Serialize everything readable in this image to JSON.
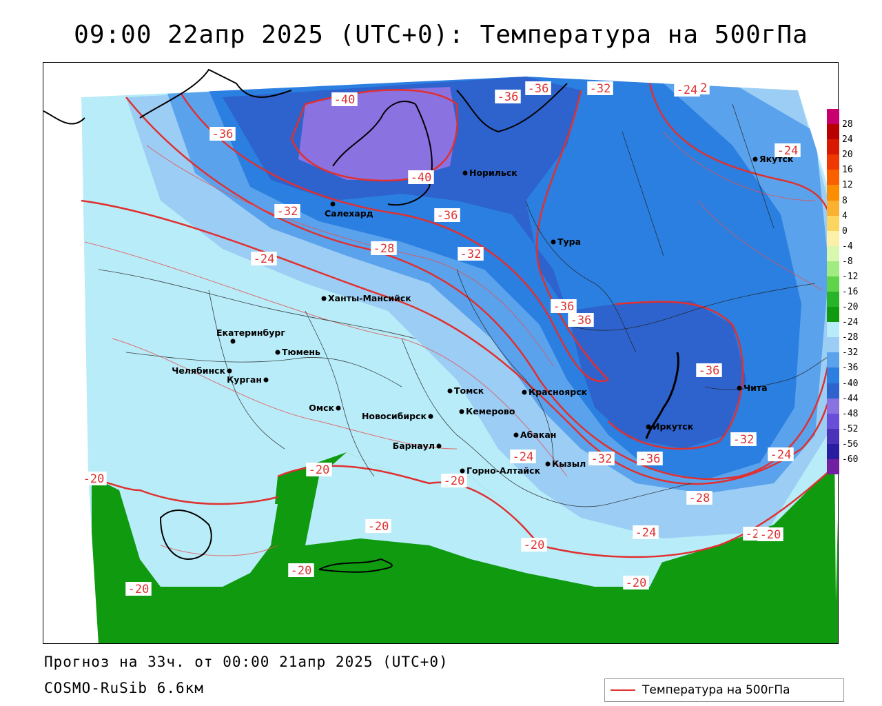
{
  "header": {
    "title": "09:00 22апр 2025 (UTC+0): Температура на 500гПа"
  },
  "map": {
    "variable": "Температура на 500гПа",
    "contour_color": "#e03030",
    "contour_labels": [
      "-40",
      "-36",
      "-36",
      "-32",
      "-32",
      "-36",
      "-24",
      "-24",
      "-24",
      "-40",
      "-32",
      "-36",
      "-28",
      "-32",
      "-36",
      "-36",
      "-36",
      "-32",
      "-24",
      "-32",
      "-36",
      "-24",
      "-20",
      "-20",
      "-20",
      "-20",
      "-28",
      "-20",
      "-24",
      "-20",
      "-20",
      "-20",
      "-20",
      "-20"
    ],
    "cities": [
      {
        "name": "Норильск"
      },
      {
        "name": "Якутск"
      },
      {
        "name": "Салехард"
      },
      {
        "name": "Тура"
      },
      {
        "name": "Ханты-Мансийск"
      },
      {
        "name": "Екатеринбург"
      },
      {
        "name": "Тюмень"
      },
      {
        "name": "Челябинск"
      },
      {
        "name": "Курган"
      },
      {
        "name": "Омск"
      },
      {
        "name": "Новосибирск"
      },
      {
        "name": "Томск"
      },
      {
        "name": "Кемерово"
      },
      {
        "name": "Красноярск"
      },
      {
        "name": "Абакан"
      },
      {
        "name": "Барнаул"
      },
      {
        "name": "Горно-Алтайск"
      },
      {
        "name": "Кызыл"
      },
      {
        "name": "Иркутск"
      },
      {
        "name": "Чита"
      }
    ],
    "fill_colors": {
      "below_minus56": "#2a1ea0",
      "minus52_48": "#6a4ed8",
      "minus44_40": "#8a72e0",
      "minus40_36": "#2e62cc",
      "minus36_32": "#2a7fe0",
      "minus32_28": "#5aa2ec",
      "minus28_24": "#9ccdf4",
      "minus24_20": "#b8ecf8",
      "minus20_16": "#0f9a0f"
    }
  },
  "colorbar": {
    "ticks": [
      "28",
      "24",
      "20",
      "16",
      "12",
      "8",
      "4",
      "0",
      "-4",
      "-8",
      "-12",
      "-16",
      "-20",
      "-24",
      "-28",
      "-32",
      "-36",
      "-40",
      "-44",
      "-48",
      "-52",
      "-56",
      "-60"
    ],
    "colors": [
      "#c8006e",
      "#b80000",
      "#d81800",
      "#ee3a00",
      "#f86000",
      "#fc8c00",
      "#fcb030",
      "#fcd460",
      "#fcf0a8",
      "#d8f8b0",
      "#a0ec80",
      "#60d448",
      "#28b428",
      "#0f9a0f",
      "#b8ecf8",
      "#9ccdf4",
      "#5aa2ec",
      "#2a7fe0",
      "#2e62cc",
      "#8a72e0",
      "#6a4ed8",
      "#4a32b8",
      "#2a1ea0",
      "#7020a0"
    ]
  },
  "footer": {
    "forecast": "Прогноз на 33ч. от 00:00 21апр 2025 (UTC+0)",
    "model": "COSMO-RuSib 6.6км"
  },
  "legend": {
    "label": "Температура на 500гПа"
  }
}
